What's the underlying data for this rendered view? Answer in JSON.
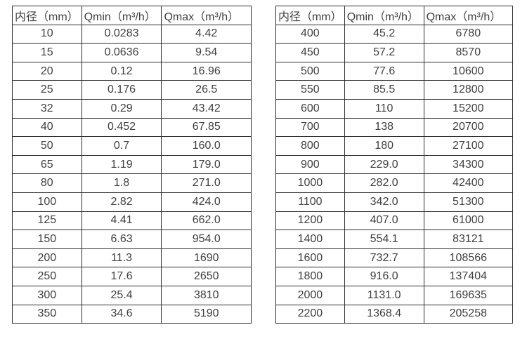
{
  "page": {
    "background_color": "#ffffff",
    "border_color": "#2e2e2e",
    "text_color": "#3f3f3f"
  },
  "chart_data": [
    {
      "type": "table",
      "name": "flow-rate-table-small-diameters",
      "columns": [
        "内径（mm）",
        "Qmin（m³/h）",
        "Qmax（m³/h）"
      ],
      "rows": [
        [
          "10",
          "0.0283",
          "4.42"
        ],
        [
          "15",
          "0.0636",
          "9.54"
        ],
        [
          "20",
          "0.12",
          "16.96"
        ],
        [
          "25",
          "0.176",
          "26.5"
        ],
        [
          "32",
          "0.29",
          "43.42"
        ],
        [
          "40",
          "0.452",
          "67.85"
        ],
        [
          "50",
          "0.7",
          "160.0"
        ],
        [
          "65",
          "1.19",
          "179.0"
        ],
        [
          "80",
          "1.8",
          "271.0"
        ],
        [
          "100",
          "2.82",
          "424.0"
        ],
        [
          "125",
          "4.41",
          "662.0"
        ],
        [
          "150",
          "6.63",
          "954.0"
        ],
        [
          "200",
          "11.3",
          "1690"
        ],
        [
          "250",
          "17.6",
          "2650"
        ],
        [
          "300",
          "25.4",
          "3810"
        ],
        [
          "350",
          "34.6",
          "5190"
        ]
      ]
    },
    {
      "type": "table",
      "name": "flow-rate-table-large-diameters",
      "columns": [
        "内径（mm）",
        "Qmin（m³/h）",
        "Qmax（m³/h）"
      ],
      "rows": [
        [
          "400",
          "45.2",
          "6780"
        ],
        [
          "450",
          "57.2",
          "8570"
        ],
        [
          "500",
          "77.6",
          "10600"
        ],
        [
          "550",
          "85.5",
          "12800"
        ],
        [
          "600",
          "110",
          "15200"
        ],
        [
          "700",
          "138",
          "20700"
        ],
        [
          "800",
          "180",
          "27100"
        ],
        [
          "900",
          "229.0",
          "34300"
        ],
        [
          "1000",
          "282.0",
          "42400"
        ],
        [
          "1100",
          "342.0",
          "51300"
        ],
        [
          "1200",
          "407.0",
          "61000"
        ],
        [
          "1400",
          "554.1",
          "83121"
        ],
        [
          "1600",
          "732.7",
          "108566"
        ],
        [
          "1800",
          "916.0",
          "137404"
        ],
        [
          "2000",
          "1131.0",
          "169635"
        ],
        [
          "2200",
          "1368.4",
          "205258"
        ]
      ]
    }
  ]
}
